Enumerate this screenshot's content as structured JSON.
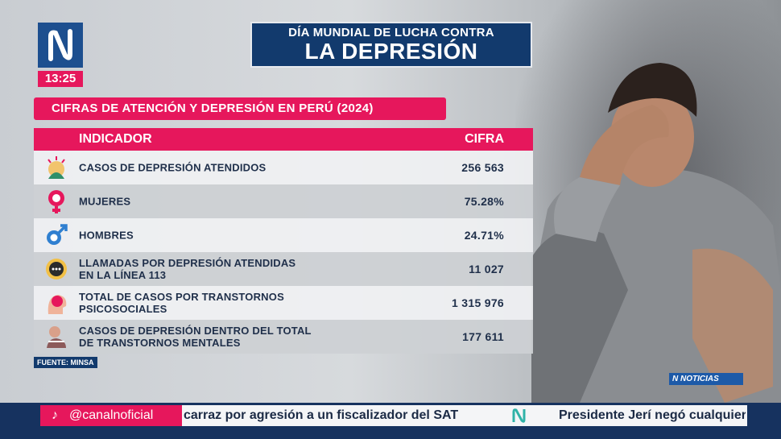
{
  "header": {
    "time": "13:25",
    "title_line1": "DÍA MUNDIAL DE LUCHA CONTRA",
    "title_line2": "LA DEPRESIÓN",
    "subtitle": "CIFRAS DE ATENCIÓN Y DEPRESIÓN EN PERÚ (2024)"
  },
  "table": {
    "col1": "INDICADOR",
    "col2": "CIFRA",
    "rows": [
      {
        "icon": "depression-head-icon",
        "line1": "CASOS DE DEPRESIÓN ATENDIDOS",
        "line2": "",
        "value": "256 563"
      },
      {
        "icon": "female-symbol-icon",
        "line1": "MUJERES",
        "line2": "",
        "value": "75.28%"
      },
      {
        "icon": "male-symbol-icon",
        "line1": "HOMBRES",
        "line2": "",
        "value": "24.71%"
      },
      {
        "icon": "call-center-icon",
        "line1": "LLAMADAS POR DEPRESIÓN ATENDIDAS",
        "line2": "EN LA LÍNEA 113",
        "value": "11 027"
      },
      {
        "icon": "brain-head-icon",
        "line1": "TOTAL DE CASOS POR TRANSTORNOS",
        "line2": "PSICOSOCIALES",
        "value": "1 315 976"
      },
      {
        "icon": "sad-person-icon",
        "line1": "CASOS DE DEPRESIÓN DENTRO DEL TOTAL",
        "line2": "DE TRANSTORNOS MENTALES",
        "value": "177 611"
      }
    ]
  },
  "source": "FUENTE: MINSA",
  "channel_badge": "NOTICIAS",
  "ticker": {
    "handle": "@canalnoficial",
    "text1": "carraz por agresión a un fiscalizador del SAT",
    "text2": "Presidente Jerí negó cualquier"
  },
  "colors": {
    "accent": "#e6175c",
    "navy": "#123a6d"
  }
}
